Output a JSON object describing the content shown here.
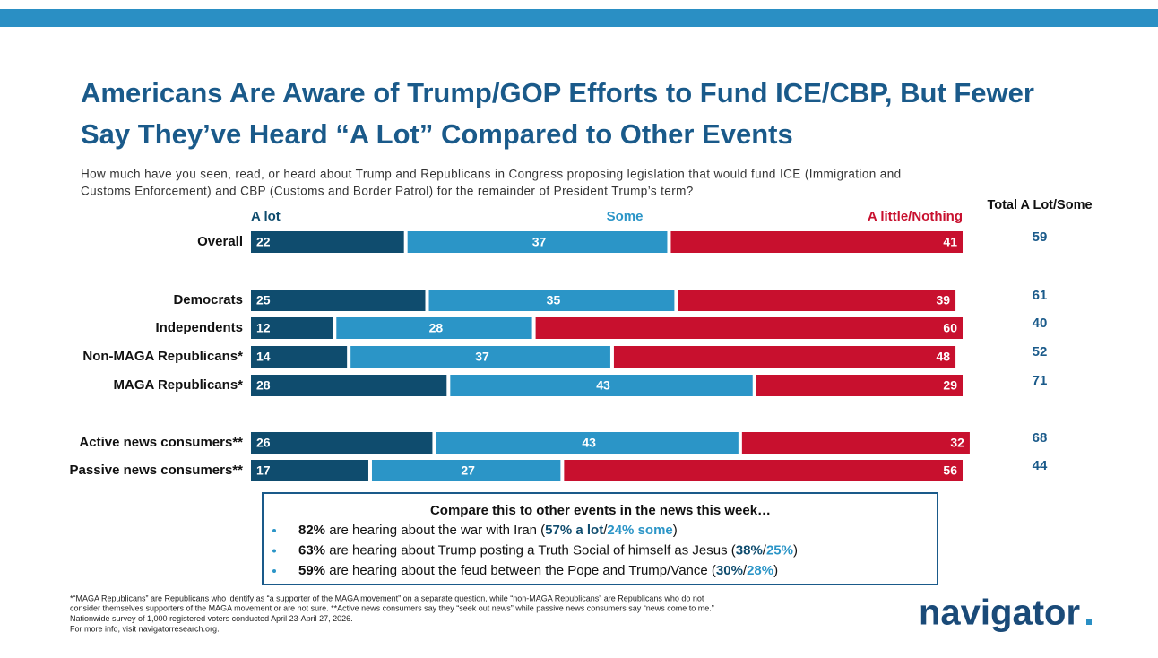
{
  "chart_data": {
    "type": "stacked-bar-h",
    "title": [
      "Americans Are Aware of Trump/GOP Efforts to Fund ICE/CBP, But Fewer",
      "Say They’ve Heard “A Lot” Compared to Other Events"
    ],
    "subtitle": [
      "How much have you seen, read, or heard about Trump and Republicans in Congress proposing legislation that would fund ICE (Immigration and",
      "Customs Enforcement) and CBP (Customs and Border Patrol) for the remainder of President Trump’s term?"
    ],
    "categories": [
      "Overall",
      "Democrats",
      "Independents",
      "Non-MAGA Republicans*",
      "MAGA Republicans*",
      "Active news consumers**",
      "Passive news consumers**"
    ],
    "series": [
      {
        "name": "A lot",
        "color": "#0f4c6e",
        "values": [
          22,
          25,
          12,
          14,
          28,
          26,
          17
        ]
      },
      {
        "name": "Some",
        "color": "#2b95c7",
        "values": [
          37,
          35,
          28,
          37,
          43,
          43,
          27
        ]
      },
      {
        "name": "A little/Nothing",
        "color": "#c8102e",
        "values": [
          41,
          39,
          60,
          48,
          29,
          32,
          56
        ]
      }
    ],
    "xlim": [
      0,
      100
    ],
    "totals": {
      "label": "Total A Lot/Some",
      "values": [
        59,
        61,
        40,
        52,
        71,
        68,
        44
      ]
    },
    "callout": {
      "title": "Compare this to other events in the news this week…",
      "items": [
        [
          {
            "text": "82%",
            "style": "bold"
          },
          {
            "text": " are hearing about the war with Iran ("
          },
          {
            "text": "57% a lot",
            "style": "alot"
          },
          {
            "text": "/"
          },
          {
            "text": "24% some",
            "style": "some"
          },
          {
            "text": ")"
          }
        ],
        [
          {
            "text": "63%",
            "style": "bold"
          },
          {
            "text": " are hearing about Trump posting a Truth Social of himself as Jesus ("
          },
          {
            "text": "38%",
            "style": "alot"
          },
          {
            "text": "/"
          },
          {
            "text": "25%",
            "style": "some"
          },
          {
            "text": ")"
          }
        ],
        [
          {
            "text": "59%",
            "style": "bold"
          },
          {
            "text": " are hearing about the feud between the Pope and Trump/Vance ("
          },
          {
            "text": "30%",
            "style": "alot"
          },
          {
            "text": "/"
          },
          {
            "text": "28%",
            "style": "some"
          },
          {
            "text": ")"
          }
        ]
      ]
    },
    "footnotes": [
      "*“MAGA Republicans” are Republicans who identify as “a supporter of the MAGA movement” on a separate question, while “non-MAGA Republicans” are Republicans who do not",
      "consider themselves supporters of the MAGA movement or are not sure. **Active news consumers say they “seek out news” while passive news consumers say “news come to me.”",
      "Nationwide survey of 1,000 registered voters conducted April 23-April 27, 2026.",
      "For more info, visit navigatorresearch.org."
    ],
    "logo": "navigator"
  }
}
